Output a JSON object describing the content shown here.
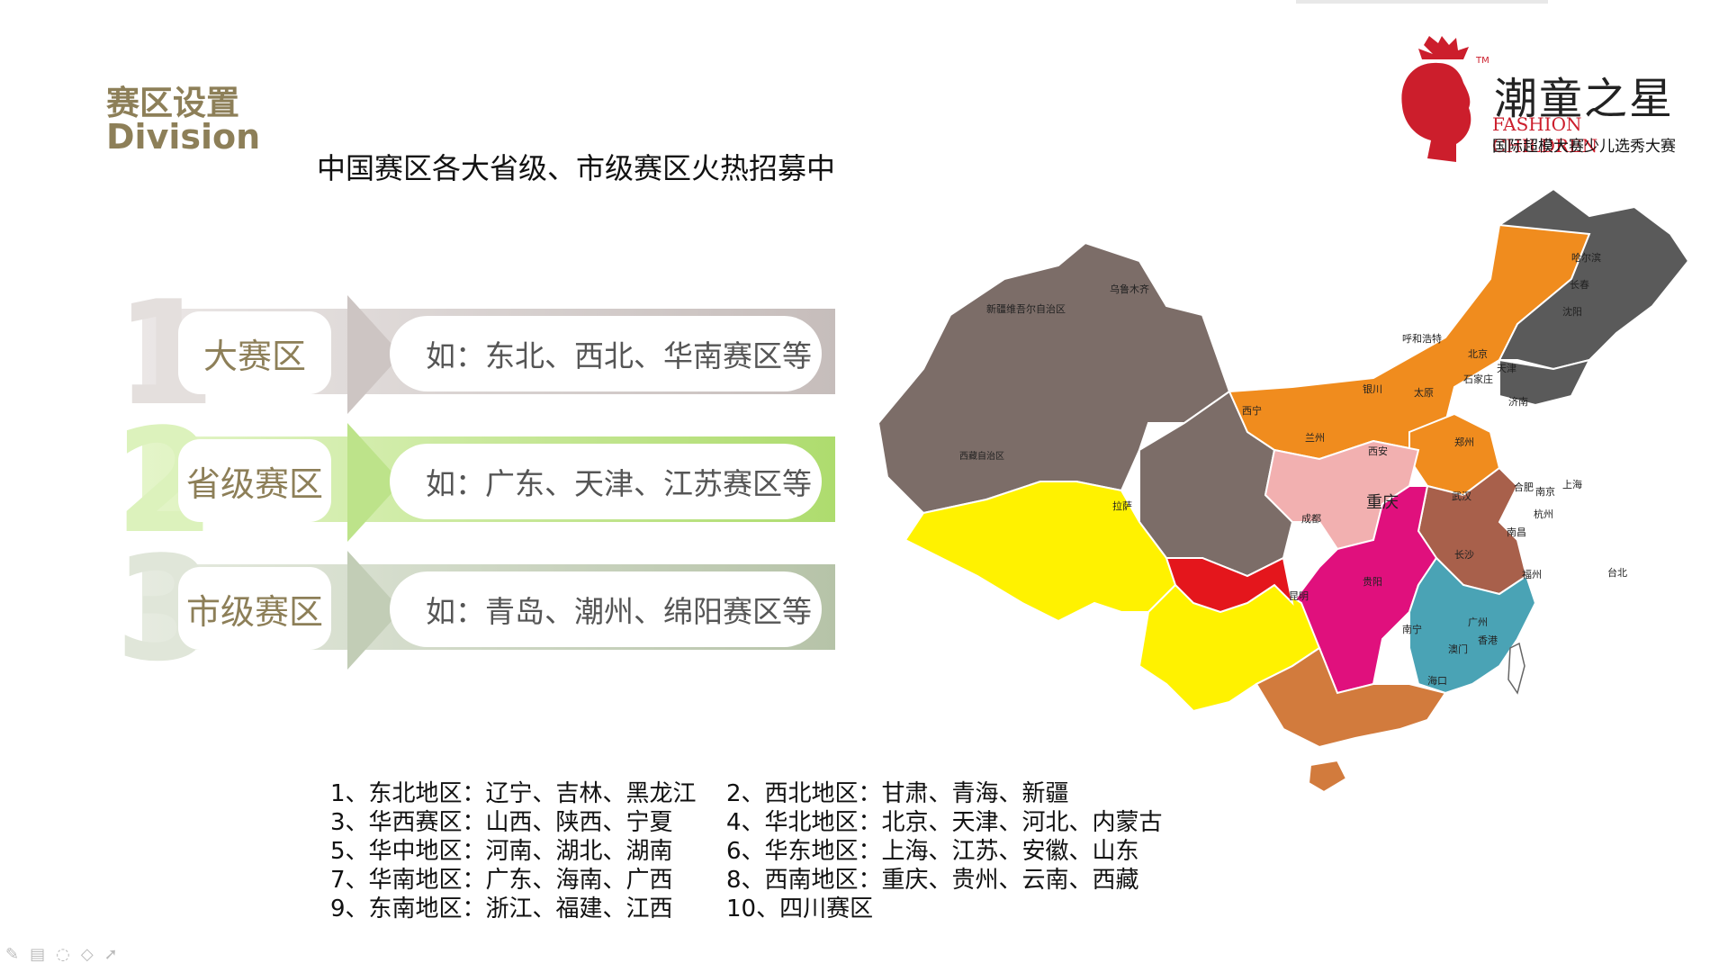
{
  "header": {
    "title_cn": "赛区设置",
    "title_en": "Division",
    "subtitle": "中国赛区各大省级、市级赛区火热招募中"
  },
  "logo": {
    "brand": "潮童之星",
    "brand_en": "FASHION CHILDREN",
    "brand_sub": "国际超模大赛少儿选秀大赛",
    "tm": "TM"
  },
  "tiers": [
    {
      "number": "1",
      "label": "大赛区",
      "example": "如：东北、西北、华南赛区等",
      "color": "#c9c1c0"
    },
    {
      "number": "2",
      "label": "省级赛区",
      "example": "如：广东、天津、江苏赛区等",
      "color": "#b9e083"
    },
    {
      "number": "3",
      "label": "市级赛区",
      "example": "如：青岛、潮州、绵阳赛区等",
      "color": "#bcc7b0"
    }
  ],
  "regions_list": [
    {
      "left": "1、东北地区：辽宁、吉林、黑龙江",
      "right": "2、西北地区：甘肃、青海、新疆"
    },
    {
      "left": "3、华西赛区：山西、陕西、宁夏",
      "right": "4、华北地区：北京、天津、河北、内蒙古"
    },
    {
      "left": "5、华中地区：河南、湖北、湖南",
      "right": "6、华东地区：上海、江苏、安徽、山东"
    },
    {
      "left": "7、华南地区：广东、海南、广西",
      "right": "8、西南地区：重庆、贵州、云南、西藏"
    },
    {
      "left": "9、东南地区：浙江、福建、江西",
      "right": "10、四川赛区"
    }
  ],
  "map": {
    "colors": {
      "northeast": "#5a5a5a",
      "north": "#f08c1e",
      "northwest": "#7c6d68",
      "huaxi": "#f2b0b0",
      "central": "#e0107d",
      "east": "#a8604b",
      "south": "#d27b3d",
      "southwest": "#fff200",
      "southeast": "#4aa3b5",
      "sichuan": "#e4161c"
    },
    "cities": [
      "哈尔滨",
      "长春",
      "沈阳",
      "呼和浩特",
      "北京",
      "天津",
      "乌鲁木齐",
      "新疆维吾尔自治区",
      "银川",
      "太原",
      "石家庄",
      "济南",
      "西宁",
      "兰州",
      "西安",
      "郑州",
      "西藏自治区",
      "拉萨",
      "成都",
      "重庆",
      "武汉",
      "合肥",
      "南京",
      "上海",
      "杭州",
      "南昌",
      "长沙",
      "贵阳",
      "昆明",
      "福州",
      "台北",
      "南宁",
      "广州",
      "香港",
      "澳门",
      "海口"
    ]
  },
  "toolbar": {
    "icons": [
      "pen-icon",
      "slides-icon",
      "circle-icon",
      "eraser-icon",
      "pointer-icon"
    ]
  }
}
